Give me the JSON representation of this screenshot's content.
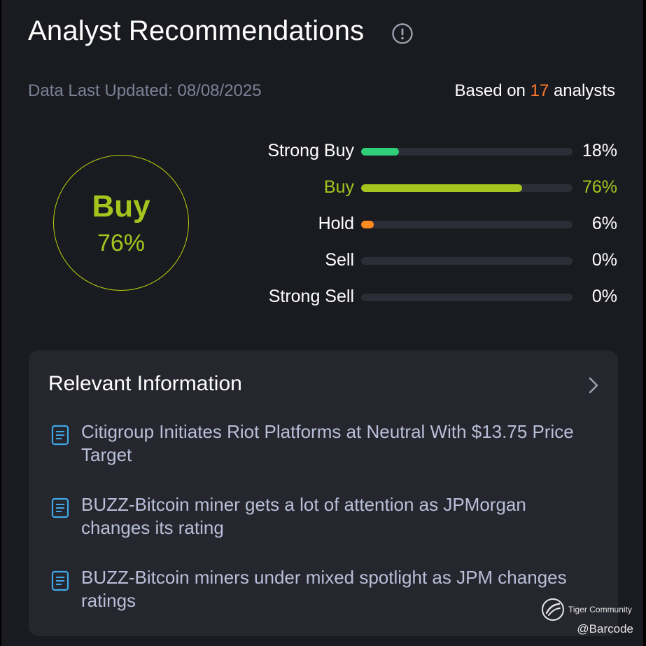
{
  "header": {
    "title": "Analyst Recommendations",
    "info_icon": "info-circle-icon"
  },
  "meta": {
    "updated_label": "Data Last Updated: 08/08/2025",
    "based_prefix": "Based on ",
    "analyst_count": "17",
    "based_suffix": " analysts"
  },
  "consensus": {
    "label": "Buy",
    "percent": "76%",
    "color": "#a6c41e"
  },
  "ratings": [
    {
      "label": "Strong Buy",
      "percent": "18%",
      "value": 18,
      "color": "#2fcf7a"
    },
    {
      "label": "Buy",
      "percent": "76%",
      "value": 76,
      "color": "#a6c41e"
    },
    {
      "label": "Hold",
      "percent": "6%",
      "value": 6,
      "color": "#ff8a1f"
    },
    {
      "label": "Sell",
      "percent": "0%",
      "value": 0,
      "color": "#e0424a"
    },
    {
      "label": "Strong Sell",
      "percent": "0%",
      "value": 0,
      "color": "#b5202a"
    }
  ],
  "relevant": {
    "title": "Relevant Information",
    "chevron_icon": "chevron-right-icon",
    "items": [
      {
        "icon": "document-icon",
        "text": "Citigroup Initiates Riot Platforms at Neutral With $13.75 Price Target"
      },
      {
        "icon": "document-icon",
        "text": "BUZZ-Bitcoin miner gets a lot of attention as JPMorgan changes its rating"
      },
      {
        "icon": "document-icon",
        "text": "BUZZ-Bitcoin miners under mixed spotlight as JPM changes ratings"
      }
    ]
  },
  "watermark": {
    "brand": "Tiger Community",
    "handle": "@Barcode",
    "icon": "tiger-logo-icon"
  },
  "colors": {
    "background": "#1a1b20",
    "card": "#25262e",
    "accent_orange": "#ff7a2a",
    "muted_text": "#7b8296",
    "news_text": "#b9bfd8"
  }
}
